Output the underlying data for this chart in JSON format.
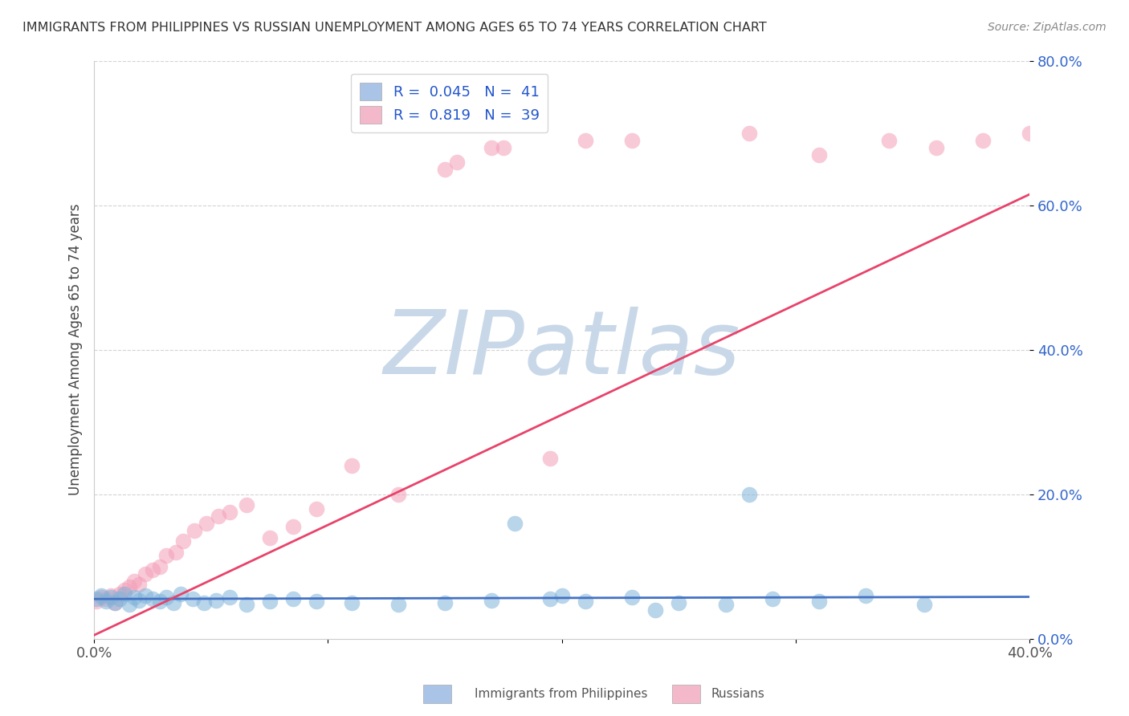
{
  "title": "IMMIGRANTS FROM PHILIPPINES VS RUSSIAN UNEMPLOYMENT AMONG AGES 65 TO 74 YEARS CORRELATION CHART",
  "source": "Source: ZipAtlas.com",
  "ylabel": "Unemployment Among Ages 65 to 74 years",
  "xlim": [
    0.0,
    0.4
  ],
  "ylim": [
    0.0,
    0.8
  ],
  "xticks": [
    0.0,
    0.1,
    0.2,
    0.3,
    0.4
  ],
  "yticks": [
    0.0,
    0.2,
    0.4,
    0.6,
    0.8
  ],
  "xtick_labels": [
    "0.0%",
    "",
    "",
    "",
    "40.0%"
  ],
  "ytick_labels_right": [
    "0.0%",
    "20.0%",
    "40.0%",
    "60.0%",
    "80.0%"
  ],
  "legend_entries": [
    {
      "label": "Immigrants from Philippines",
      "R": "0.045",
      "N": "41",
      "color": "#aac4e8"
    },
    {
      "label": "Russians",
      "R": "0.819",
      "N": "39",
      "color": "#f4b8cb"
    }
  ],
  "philippines_line_color": "#4472c4",
  "russians_line_color": "#e8436a",
  "scatter_blue_color": "#7fb3d9",
  "scatter_pink_color": "#f4a0b8",
  "phil_trend_x": [
    0.0,
    0.4
  ],
  "phil_trend_y": [
    0.055,
    0.058
  ],
  "russ_trend_x": [
    0.0,
    0.4
  ],
  "russ_trend_y": [
    0.005,
    0.615
  ],
  "watermark_zip": "ZIP",
  "watermark_atlas": "atlas",
  "watermark_color_zip": "#d0dff0",
  "watermark_color_atlas": "#c8d8e8",
  "background_color": "#ffffff",
  "grid_color": "#c8c8c8",
  "phil_scatter_x": [
    0.001,
    0.003,
    0.005,
    0.007,
    0.009,
    0.011,
    0.013,
    0.015,
    0.017,
    0.019,
    0.022,
    0.025,
    0.028,
    0.031,
    0.034,
    0.037,
    0.042,
    0.047,
    0.052,
    0.058,
    0.065,
    0.075,
    0.085,
    0.095,
    0.11,
    0.13,
    0.15,
    0.17,
    0.195,
    0.21,
    0.23,
    0.25,
    0.27,
    0.29,
    0.31,
    0.33,
    0.355,
    0.28,
    0.18,
    0.2,
    0.24
  ],
  "phil_scatter_y": [
    0.055,
    0.06,
    0.052,
    0.058,
    0.05,
    0.055,
    0.062,
    0.048,
    0.057,
    0.053,
    0.06,
    0.055,
    0.052,
    0.058,
    0.05,
    0.062,
    0.055,
    0.05,
    0.053,
    0.058,
    0.048,
    0.052,
    0.055,
    0.052,
    0.05,
    0.048,
    0.05,
    0.053,
    0.055,
    0.052,
    0.058,
    0.05,
    0.048,
    0.055,
    0.052,
    0.06,
    0.048,
    0.2,
    0.16,
    0.06,
    0.04
  ],
  "russ_scatter_x": [
    0.001,
    0.003,
    0.005,
    0.007,
    0.009,
    0.011,
    0.013,
    0.015,
    0.017,
    0.019,
    0.022,
    0.025,
    0.028,
    0.031,
    0.035,
    0.038,
    0.043,
    0.048,
    0.053,
    0.058,
    0.065,
    0.075,
    0.085,
    0.095,
    0.11,
    0.13,
    0.15,
    0.17,
    0.195,
    0.21,
    0.23,
    0.28,
    0.31,
    0.34,
    0.36,
    0.38,
    0.4,
    0.155,
    0.175
  ],
  "russ_scatter_y": [
    0.052,
    0.058,
    0.055,
    0.06,
    0.05,
    0.062,
    0.068,
    0.072,
    0.08,
    0.075,
    0.09,
    0.095,
    0.1,
    0.115,
    0.12,
    0.135,
    0.15,
    0.16,
    0.17,
    0.175,
    0.185,
    0.14,
    0.155,
    0.18,
    0.24,
    0.2,
    0.65,
    0.68,
    0.25,
    0.69,
    0.69,
    0.7,
    0.67,
    0.69,
    0.68,
    0.69,
    0.7,
    0.66,
    0.68
  ]
}
